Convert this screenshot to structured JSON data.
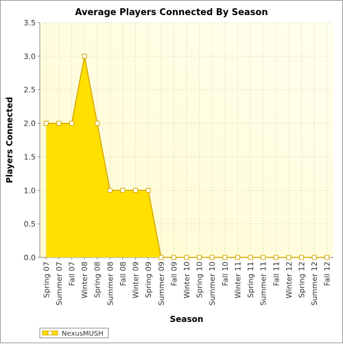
{
  "chart_data": {
    "type": "area",
    "title": "Average Players Connected By Season",
    "x_label": "Season",
    "y_label": "Players Connected",
    "categories": [
      "Spring 07",
      "Summer 07",
      "Fall 07",
      "Winter 08",
      "Spring 08",
      "Summer 08",
      "Fall 08",
      "Winter 09",
      "Spring 09",
      "Summer 09",
      "Fall 09",
      "Winter 10",
      "Spring 10",
      "Summer 10",
      "Fall 10",
      "Winter 11",
      "Spring 11",
      "Summer 11",
      "Fall 11",
      "Winter 12",
      "Spring 12",
      "Summer 12",
      "Fall 12"
    ],
    "series": [
      {
        "name": "NexusMUSH",
        "color": "#ffe000",
        "values": [
          2,
          2,
          2,
          3,
          2,
          1,
          1,
          1,
          1,
          0,
          0,
          0,
          0,
          0,
          0,
          0,
          0,
          0,
          0,
          0,
          0,
          0,
          0
        ]
      }
    ],
    "ylim": [
      0,
      3.5
    ],
    "yticks": [
      {
        "value": 0,
        "label": "0.0"
      },
      0.5,
      {
        "value": 1,
        "label": "1.0"
      },
      1.5,
      {
        "value": 2,
        "label": "2.0"
      },
      2.5,
      {
        "value": 3,
        "label": "3.0"
      },
      3.5
    ],
    "grid": true,
    "legend": "bottom-left"
  }
}
